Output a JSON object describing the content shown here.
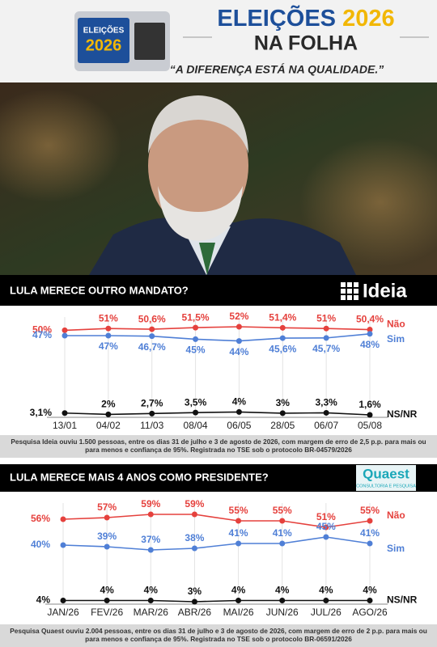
{
  "header": {
    "logo_line1": "ELEIÇÕES",
    "logo_line2": "2026",
    "title_word": "ELEIÇÕES",
    "title_year": "2026",
    "subtitle": "NA FOLHA",
    "slogan": "“A DIFERENÇA ESTÁ NA QUALIDADE.”"
  },
  "chart_data": [
    {
      "type": "line",
      "title": "LULA MERECE OUTRO MANDATO?",
      "brand": "Ideia",
      "categories": [
        "13/01",
        "04/02",
        "11/03",
        "08/04",
        "06/05",
        "28/05",
        "06/07",
        "05/08"
      ],
      "series": [
        {
          "name": "Não",
          "color": "#e5413d",
          "label_position": "above",
          "values": [
            50,
            51,
            50.6,
            51.5,
            52,
            51.4,
            51,
            50.4
          ],
          "value_labels": [
            "50%",
            "51%",
            "50,6%",
            "51,5%",
            "52%",
            "51,4%",
            "51%",
            "50,4%"
          ]
        },
        {
          "name": "Sim",
          "color": "#4f7fd6",
          "label_position": "below",
          "values": [
            47,
            47,
            46.7,
            45,
            44,
            45.6,
            45.7,
            48
          ],
          "value_labels": [
            "47%",
            "47%",
            "46,7%",
            "45%",
            "44%",
            "45,6%",
            "45,7%",
            "48%"
          ]
        },
        {
          "name": "NS/NR",
          "color": "#111111",
          "label_position": "above",
          "values": [
            3.1,
            2,
            2.7,
            3.5,
            4,
            3,
            3.3,
            1.6
          ],
          "value_labels": [
            "3,1%",
            "2%",
            "2,7%",
            "3,5%",
            "4%",
            "3%",
            "3,3%",
            "1,6%"
          ]
        }
      ],
      "note": "Pesquisa Ideia ouviu 1.500 pessoas, entre os dias 31 de julho e 3 de agosto de 2026, com margem de erro de 2,5 p.p. para mais ou para menos e confiança de 95%. Registrada no TSE sob o protocolo BR-04579/2026"
    },
    {
      "type": "line",
      "title": "LULA MERECE MAIS 4 ANOS COMO PRESIDENTE?",
      "brand": "Quaest",
      "brand_tagline": "CONSULTORIA E PESQUISA",
      "categories": [
        "JAN/26",
        "FEV/26",
        "MAR/26",
        "ABR/26",
        "MAI/26",
        "JUN/26",
        "JUL/26",
        "AGO/26"
      ],
      "series": [
        {
          "name": "Não",
          "color": "#e5413d",
          "label_position": "above",
          "values": [
            56,
            57,
            59,
            59,
            55,
            55,
            51,
            55
          ],
          "value_labels": [
            "56%",
            "57%",
            "59%",
            "59%",
            "55%",
            "55%",
            "51%",
            "55%"
          ]
        },
        {
          "name": "Sim",
          "color": "#4f7fd6",
          "label_position": "above",
          "values": [
            40,
            39,
            37,
            38,
            41,
            41,
            45,
            41
          ],
          "value_labels": [
            "40%",
            "39%",
            "37%",
            "38%",
            "41%",
            "41%",
            "45%",
            "41%"
          ]
        },
        {
          "name": "NS/NR",
          "color": "#111111",
          "label_position": "above",
          "values": [
            4,
            4,
            4,
            3,
            4,
            4,
            4,
            4
          ],
          "value_labels": [
            "4%",
            "4%",
            "4%",
            "3%",
            "4%",
            "4%",
            "4%",
            "4%"
          ]
        }
      ],
      "note": "Pesquisa Quaest ouviu 2.004 pessoas, entre os dias 31 de julho e 3 de agosto de 2026, com margem de erro de 2 p.p. para mais ou para menos e confiança de 95%. Registrada no TSE sob o protocolo BR-06591/2026"
    }
  ]
}
